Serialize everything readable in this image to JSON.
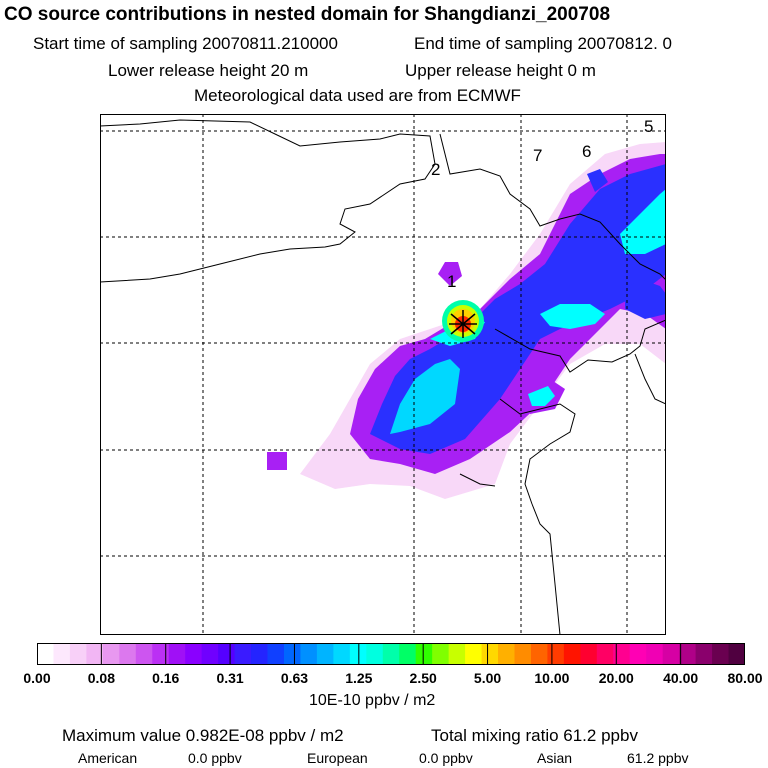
{
  "header": {
    "title": "CO  source contributions in nested domain for Shangdianzi_200708",
    "start_time": "Start time of sampling 20070811.210000",
    "end_time": "End time of sampling 20070812.     0",
    "lower_release": "Lower release height   20 m",
    "upper_release": "Upper release height    0 m",
    "met_data": "Meteorological data used are from ECMWF"
  },
  "map": {
    "region_labels": [
      "1",
      "2",
      "5",
      "6",
      "7"
    ],
    "station_marker": "star",
    "colors": {
      "low": "#ffe6ff",
      "purple": "#a000ff",
      "blue": "#1e1eff",
      "cyan": "#00ffff",
      "yellow": "#ffff00",
      "red": "#ff0000",
      "coast": "#000000"
    }
  },
  "colorbar": {
    "ticks": [
      "0.00",
      "0.08",
      "0.16",
      "0.31",
      "0.63",
      "1.25",
      "2.50",
      "5.00",
      "10.00",
      "20.00",
      "40.00",
      "80.00"
    ],
    "units": "10E-10 ppbv / m2",
    "colors": [
      "#ffffff",
      "#fde8fd",
      "#f8d0f8",
      "#f2b6f4",
      "#e898f0",
      "#dc78ee",
      "#cd55f0",
      "#bb30f4",
      "#a010f6",
      "#8a00ff",
      "#7000ff",
      "#5500ff",
      "#3a1bff",
      "#2424ff",
      "#1040ff",
      "#0066ff",
      "#0090ff",
      "#00b4ff",
      "#00d8ff",
      "#00ffff",
      "#00ffe0",
      "#00ffaa",
      "#00ff66",
      "#30ff00",
      "#80ff00",
      "#c8ff00",
      "#ffff00",
      "#ffd800",
      "#ffb000",
      "#ff8c00",
      "#ff6400",
      "#ff3c00",
      "#ff1400",
      "#ff0030",
      "#ff0064",
      "#ff0090",
      "#ff00b4",
      "#f000b4",
      "#d600a4",
      "#b00088",
      "#8a006c",
      "#6a0050",
      "#500040"
    ]
  },
  "footer": {
    "max_value": "Maximum value  0.982E-08 ppbv / m2",
    "total_mixing": "Total mixing ratio      61.2 ppbv",
    "american_label": "American",
    "american_value": "0.0 ppbv",
    "european_label": "European",
    "european_value": "0.0 ppbv",
    "asian_label": "Asian",
    "asian_value": "61.2 ppbv"
  }
}
